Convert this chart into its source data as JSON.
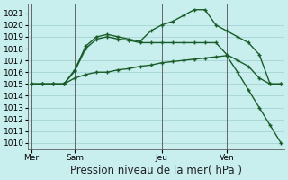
{
  "bg_color": "#c8eeee",
  "grid_color": "#9ecece",
  "line_color": "#1a5c28",
  "title": "Pression niveau de la mer( hPa )",
  "ylim": [
    1009.5,
    1021.8
  ],
  "yticks": [
    1010,
    1011,
    1012,
    1013,
    1014,
    1015,
    1016,
    1017,
    1018,
    1019,
    1020,
    1021
  ],
  "xtick_labels": [
    "Mer",
    "Sam",
    "Jeu",
    "Ven"
  ],
  "xtick_positions": [
    0,
    4,
    12,
    18
  ],
  "vline_positions": [
    0,
    4,
    12,
    18
  ],
  "line1_x": [
    0,
    1,
    2,
    3,
    4,
    5,
    6,
    7,
    8,
    9,
    10,
    11,
    12,
    13,
    14,
    15,
    16,
    17,
    18,
    19,
    20,
    21,
    22,
    23
  ],
  "line1_y": [
    1015.0,
    1015.0,
    1015.0,
    1015.0,
    1016.1,
    1018.0,
    1018.8,
    1019.0,
    1018.8,
    1018.7,
    1018.5,
    1018.5,
    1018.5,
    1018.5,
    1018.5,
    1018.5,
    1018.5,
    1018.5,
    1017.5,
    1017.0,
    1016.5,
    1015.5,
    1015.0,
    1015.0
  ],
  "line2_x": [
    0,
    1,
    2,
    3,
    4,
    5,
    6,
    7,
    8,
    9,
    10,
    11,
    12,
    13,
    14,
    15,
    16,
    17,
    18,
    19,
    20,
    21,
    22,
    23
  ],
  "line2_y": [
    1015.0,
    1015.0,
    1015.0,
    1015.0,
    1016.2,
    1018.2,
    1019.0,
    1019.2,
    1019.0,
    1018.8,
    1018.6,
    1019.5,
    1020.0,
    1020.3,
    1020.8,
    1021.3,
    1021.3,
    1020.0,
    1019.5,
    1019.0,
    1018.5,
    1017.5,
    1015.0,
    1015.0
  ],
  "line3_x": [
    0,
    1,
    2,
    3,
    4,
    5,
    6,
    7,
    8,
    9,
    10,
    11,
    12,
    13,
    14,
    15,
    16,
    17,
    18,
    19,
    20,
    21,
    22,
    23
  ],
  "line3_y": [
    1015.0,
    1015.0,
    1015.0,
    1015.0,
    1015.5,
    1015.8,
    1016.0,
    1016.0,
    1016.2,
    1016.3,
    1016.5,
    1016.6,
    1016.8,
    1016.9,
    1017.0,
    1017.1,
    1017.2,
    1017.3,
    1017.4,
    1016.0,
    1014.5,
    1013.0,
    1011.5,
    1010.0
  ],
  "fontsize_title": 8.5,
  "fontsize_ticks": 6.5
}
